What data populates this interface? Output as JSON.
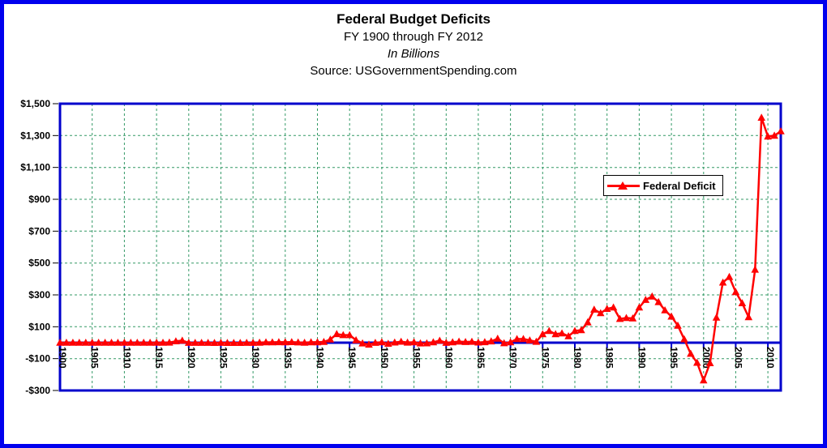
{
  "window": {
    "frame_color": "#0000ee",
    "background": "#ffffff"
  },
  "header": {
    "title": "Federal Budget Deficits",
    "subtitle": "FY 1900 through FY 2012",
    "units_line": "In Billions",
    "source_line": "Source: USGovernmentSpending.com"
  },
  "legend": {
    "label": "Federal Deficit",
    "marker_color": "#ff0000"
  },
  "chart_data": {
    "type": "line",
    "title": "Federal Budget Deficits",
    "subtitle": "FY 1900 through FY 2012",
    "units": "In Billions",
    "source": "Source: USGovernmentSpending.com",
    "xlabel": "",
    "ylabel": "",
    "xlim": [
      1900,
      2012
    ],
    "ylim": [
      -300,
      1500
    ],
    "grid": {
      "on": true,
      "color": "#339966",
      "style": "dashed"
    },
    "axis": {
      "plot_border_color": "#0000cc",
      "zero_line_color": "#0000cc",
      "zero_line_value": 0,
      "tick_color": "#000000"
    },
    "x_tick_years": [
      1900,
      1905,
      1910,
      1915,
      1920,
      1925,
      1930,
      1935,
      1940,
      1945,
      1950,
      1955,
      1960,
      1965,
      1970,
      1975,
      1980,
      1985,
      1990,
      1995,
      2000,
      2005,
      2010
    ],
    "y_ticks": [
      "$1,500",
      "$1,300",
      "$1,100",
      "$900",
      "$700",
      "$500",
      "$300",
      "$100",
      "-$100",
      "-$300"
    ],
    "y_tick_values": [
      1500,
      1300,
      1100,
      900,
      700,
      500,
      300,
      100,
      -100,
      -300
    ],
    "legend_position": "inside-top-right",
    "series": [
      {
        "name": "Federal Deficit",
        "color": "#ff0000",
        "marker": "triangle-up",
        "first_year": 1900,
        "values": [
          -0.05,
          -0.06,
          -0.08,
          -0.05,
          0.04,
          -0.02,
          -0.03,
          -0.09,
          0.06,
          0.09,
          0.02,
          -0.01,
          0,
          0,
          0,
          0.06,
          -0.05,
          0.85,
          9.0,
          13.4,
          -0.29,
          -0.51,
          -0.74,
          -0.71,
          -0.96,
          -0.72,
          -0.87,
          -1.16,
          -0.94,
          -0.73,
          -0.74,
          0.46,
          2.74,
          2.6,
          3.59,
          2.8,
          4.3,
          2.19,
          0.09,
          2.85,
          2.92,
          4.94,
          20.5,
          54.6,
          47.6,
          47.6,
          15.9,
          -4.0,
          -11.8,
          -0.6,
          3.1,
          -6.1,
          1.5,
          6.5,
          1.2,
          3.0,
          -3.9,
          -3.4,
          2.8,
          12.8,
          -0.3,
          3.3,
          7.1,
          4.8,
          5.9,
          1.4,
          3.7,
          8.6,
          25.2,
          -3.2,
          2.8,
          23.0,
          23.4,
          14.9,
          6.1,
          53.2,
          73.7,
          53.7,
          59.2,
          40.7,
          73.8,
          79.0,
          128.0,
          207.8,
          185.4,
          212.3,
          221.2,
          149.7,
          155.2,
          152.6,
          221.0,
          269.2,
          290.3,
          255.1,
          203.2,
          164.0,
          107.4,
          21.9,
          -69.3,
          -125.6,
          -236.2,
          -128.2,
          157.8,
          377.6,
          412.7,
          318.3,
          248.2,
          160.7,
          458.6,
          1412.7,
          1294.4,
          1299.6,
          1327.0
        ]
      }
    ]
  }
}
